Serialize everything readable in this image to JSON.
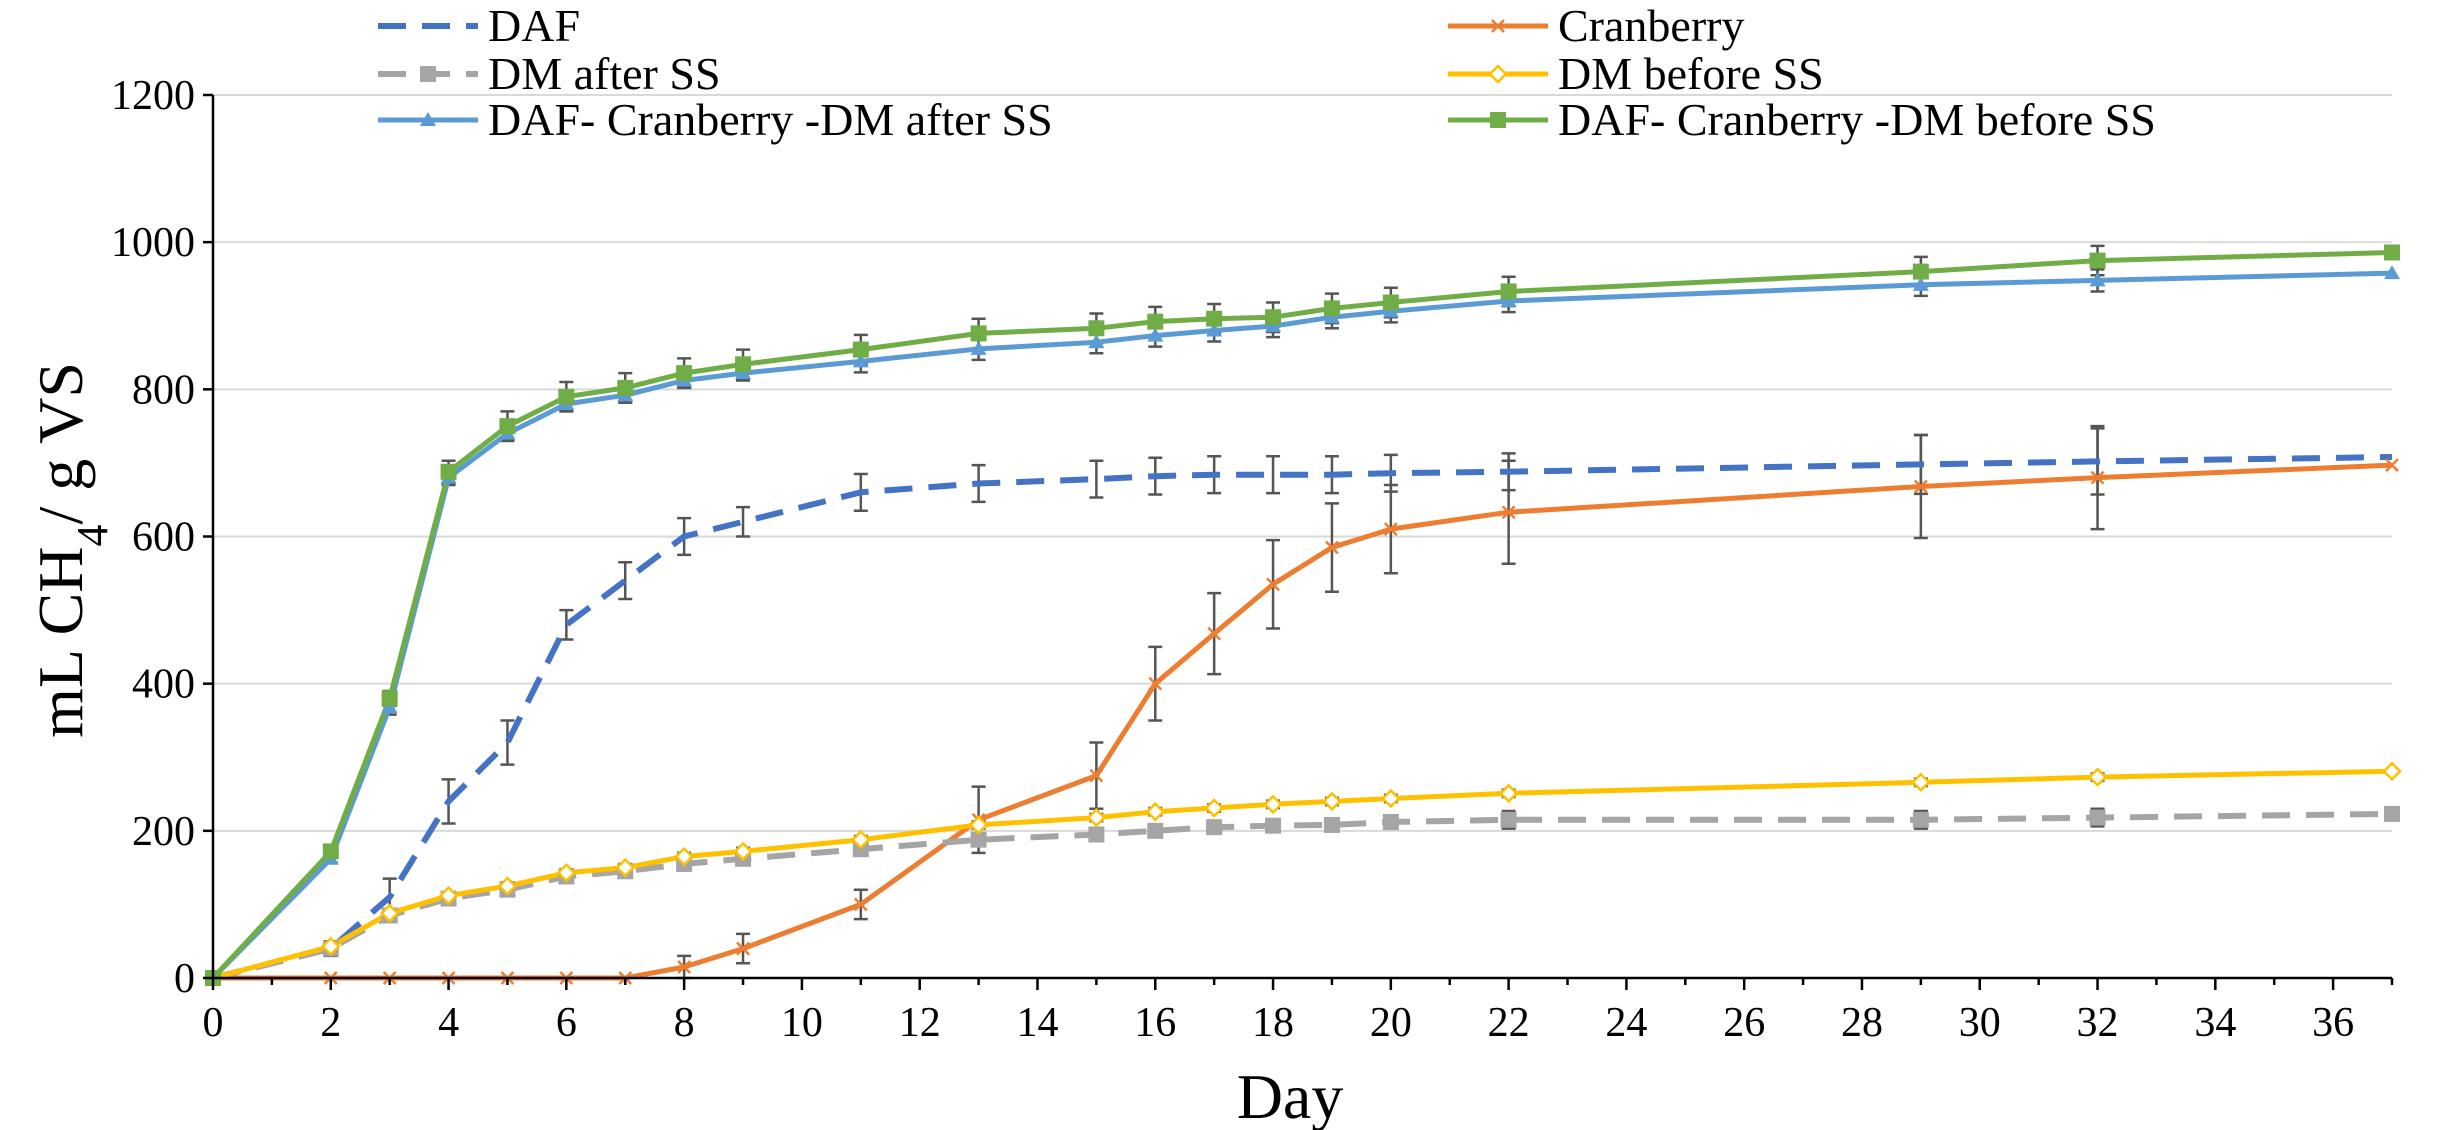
{
  "chart_data": {
    "type": "line",
    "xlabel": "Day",
    "ylabel": "mL CH4/ g VS",
    "xlim": [
      0,
      37
    ],
    "ylim": [
      0,
      1200
    ],
    "xticks": [
      0,
      2,
      4,
      6,
      8,
      10,
      12,
      14,
      16,
      18,
      20,
      22,
      24,
      26,
      28,
      30,
      32,
      34,
      36
    ],
    "yticks": [
      0,
      200,
      400,
      600,
      800,
      1000,
      1200
    ],
    "grid": "horizontal",
    "legend_placement": "top",
    "series": [
      {
        "name": "DAF",
        "color": "#4472C4",
        "dash": "dashed",
        "marker": "none",
        "x": [
          0,
          2,
          3,
          4,
          5,
          6,
          7,
          8,
          9,
          11,
          13,
          15,
          16,
          17,
          18,
          19,
          20,
          22,
          29,
          32,
          37
        ],
        "y": [
          0,
          40,
          110,
          240,
          320,
          480,
          540,
          600,
          620,
          660,
          672,
          678,
          682,
          684,
          684,
          684,
          686,
          688,
          698,
          702,
          708
        ],
        "err": [
          0,
          10,
          25,
          30,
          30,
          20,
          25,
          25,
          20,
          25,
          25,
          25,
          25,
          25,
          25,
          25,
          25,
          25,
          40,
          45,
          0
        ]
      },
      {
        "name": "Cranberry",
        "color": "#ED7D31",
        "dash": "solid",
        "marker": "x",
        "x": [
          0,
          2,
          3,
          4,
          5,
          6,
          7,
          8,
          9,
          11,
          13,
          15,
          16,
          17,
          18,
          19,
          20,
          22,
          29,
          32,
          37
        ],
        "y": [
          0,
          0,
          0,
          0,
          0,
          0,
          0,
          15,
          40,
          100,
          215,
          275,
          400,
          468,
          535,
          585,
          610,
          633,
          668,
          680,
          697
        ],
        "err": [
          0,
          0,
          0,
          0,
          0,
          0,
          0,
          15,
          20,
          20,
          45,
          45,
          50,
          55,
          60,
          60,
          60,
          70,
          70,
          70,
          0
        ]
      },
      {
        "name": "DM after SS",
        "color": "#A5A5A5",
        "dash": "dashed",
        "marker": "square",
        "x": [
          0,
          2,
          3,
          4,
          5,
          6,
          7,
          8,
          9,
          11,
          13,
          15,
          16,
          17,
          18,
          19,
          20,
          22,
          29,
          32,
          37
        ],
        "y": [
          0,
          40,
          85,
          108,
          120,
          138,
          145,
          155,
          162,
          175,
          188,
          195,
          200,
          205,
          207,
          208,
          212,
          215,
          215,
          218,
          223
        ],
        "err": [
          0,
          5,
          5,
          5,
          5,
          5,
          5,
          5,
          5,
          5,
          8,
          5,
          5,
          5,
          5,
          5,
          5,
          12,
          12,
          12,
          0
        ]
      },
      {
        "name": "DM before SS",
        "color": "#FFC000",
        "dash": "solid",
        "marker": "diamond",
        "x": [
          0,
          2,
          3,
          4,
          5,
          6,
          7,
          8,
          9,
          11,
          13,
          15,
          16,
          17,
          18,
          19,
          20,
          22,
          29,
          32,
          37
        ],
        "y": [
          0,
          43,
          88,
          112,
          125,
          143,
          150,
          165,
          172,
          188,
          208,
          218,
          226,
          231,
          236,
          240,
          244,
          251,
          266,
          273,
          281
        ],
        "err": [
          0,
          5,
          5,
          5,
          5,
          5,
          5,
          5,
          5,
          5,
          5,
          5,
          5,
          5,
          5,
          5,
          5,
          5,
          5,
          5,
          0
        ]
      },
      {
        "name": "DAF- Cranberry -DM after SS",
        "color": "#5B9BD5",
        "dash": "solid",
        "marker": "triangle",
        "x": [
          0,
          2,
          3,
          4,
          5,
          6,
          7,
          8,
          9,
          11,
          13,
          15,
          16,
          17,
          18,
          19,
          20,
          22,
          29,
          32,
          37
        ],
        "y": [
          0,
          162,
          368,
          680,
          740,
          780,
          792,
          812,
          822,
          838,
          855,
          864,
          873,
          880,
          886,
          898,
          906,
          920,
          942,
          948,
          958
        ],
        "err": [
          0,
          5,
          10,
          10,
          10,
          10,
          10,
          10,
          10,
          15,
          15,
          15,
          15,
          15,
          15,
          15,
          15,
          15,
          15,
          15,
          0
        ]
      },
      {
        "name": "DAF- Cranberry -DM before SS",
        "color": "#70AD47",
        "dash": "solid",
        "marker": "square",
        "x": [
          0,
          2,
          3,
          4,
          5,
          6,
          7,
          8,
          9,
          11,
          13,
          15,
          16,
          17,
          18,
          19,
          20,
          22,
          29,
          32,
          37
        ],
        "y": [
          0,
          172,
          380,
          688,
          750,
          790,
          802,
          822,
          834,
          854,
          876,
          883,
          892,
          896,
          898,
          910,
          918,
          933,
          960,
          975,
          986
        ],
        "err": [
          0,
          5,
          10,
          15,
          20,
          20,
          20,
          20,
          20,
          20,
          20,
          20,
          20,
          20,
          20,
          20,
          20,
          20,
          20,
          20,
          0
        ]
      }
    ]
  }
}
